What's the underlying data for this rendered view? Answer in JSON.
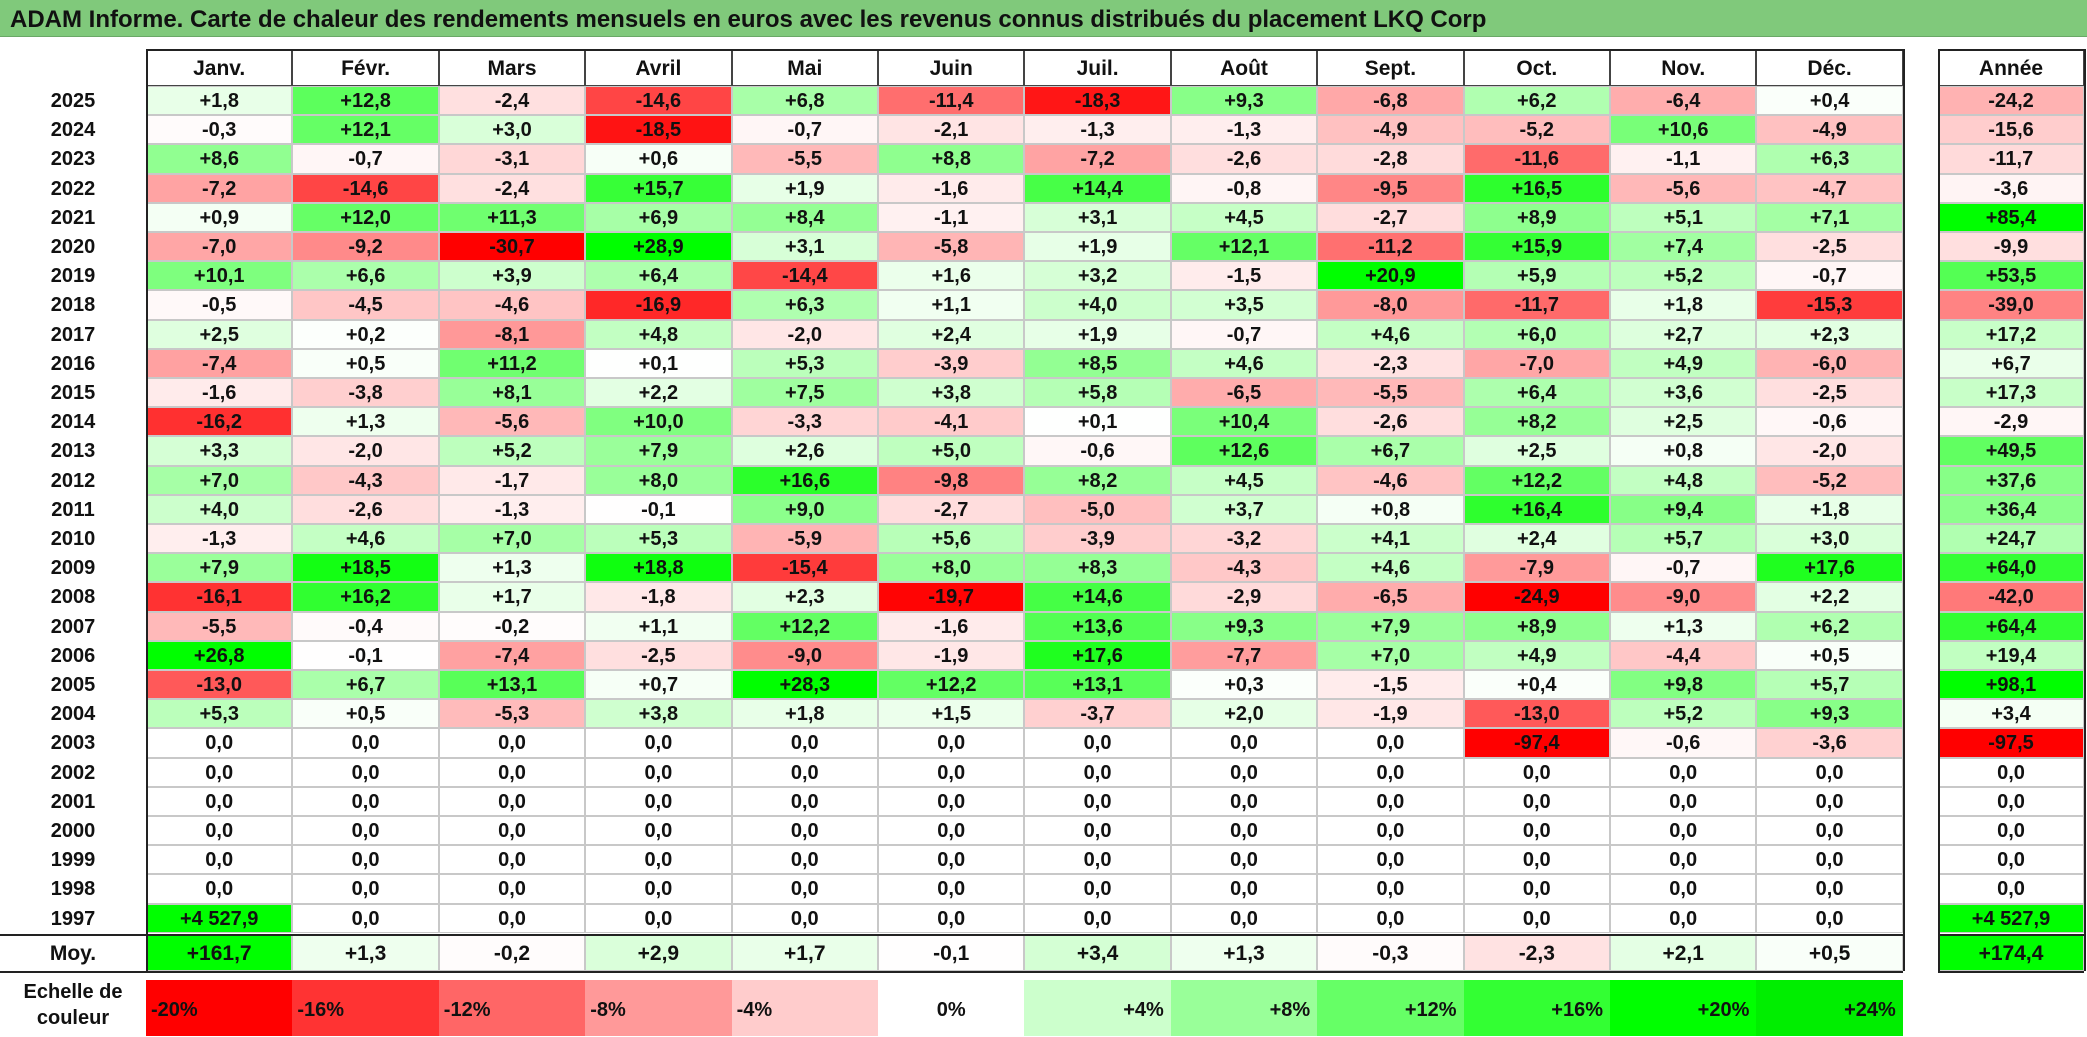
{
  "title": "ADAM Informe. Carte de chaleur des rendements mensuels en euros avec les revenus connus distribués du placement LKQ Corp",
  "chart_data": {
    "type": "heatmap",
    "title": "ADAM Informe. Carte de chaleur des rendements mensuels en euros avec les revenus connus distribués du placement LKQ Corp",
    "columns": [
      "Janv.",
      "Févr.",
      "Mars",
      "Avril",
      "Mai",
      "Juin",
      "Juil.",
      "Août",
      "Sept.",
      "Oct.",
      "Nov.",
      "Déc."
    ],
    "year_header": "Année",
    "rows": [
      {
        "year": "2025",
        "values": [
          "+1,8",
          "+12,8",
          "-2,4",
          "-14,6",
          "+6,8",
          "-11,4",
          "-18,3",
          "+9,3",
          "-6,8",
          "+6,2",
          "-6,4",
          "+0,4"
        ],
        "annual": "-24,2"
      },
      {
        "year": "2024",
        "values": [
          "-0,3",
          "+12,1",
          "+3,0",
          "-18,5",
          "-0,7",
          "-2,1",
          "-1,3",
          "-1,3",
          "-4,9",
          "-5,2",
          "+10,6",
          "-4,9"
        ],
        "annual": "-15,6"
      },
      {
        "year": "2023",
        "values": [
          "+8,6",
          "-0,7",
          "-3,1",
          "+0,6",
          "-5,5",
          "+8,8",
          "-7,2",
          "-2,6",
          "-2,8",
          "-11,6",
          "-1,1",
          "+6,3"
        ],
        "annual": "-11,7"
      },
      {
        "year": "2022",
        "values": [
          "-7,2",
          "-14,6",
          "-2,4",
          "+15,7",
          "+1,9",
          "-1,6",
          "+14,4",
          "-0,8",
          "-9,5",
          "+16,5",
          "-5,6",
          "-4,7"
        ],
        "annual": "-3,6"
      },
      {
        "year": "2021",
        "values": [
          "+0,9",
          "+12,0",
          "+11,3",
          "+6,9",
          "+8,4",
          "-1,1",
          "+3,1",
          "+4,5",
          "-2,7",
          "+8,9",
          "+5,1",
          "+7,1"
        ],
        "annual": "+85,4"
      },
      {
        "year": "2020",
        "values": [
          "-7,0",
          "-9,2",
          "-30,7",
          "+28,9",
          "+3,1",
          "-5,8",
          "+1,9",
          "+12,1",
          "-11,2",
          "+15,9",
          "+7,4",
          "-2,5"
        ],
        "annual": "-9,9"
      },
      {
        "year": "2019",
        "values": [
          "+10,1",
          "+6,6",
          "+3,9",
          "+6,4",
          "-14,4",
          "+1,6",
          "+3,2",
          "-1,5",
          "+20,9",
          "+5,9",
          "+5,2",
          "-0,7"
        ],
        "annual": "+53,5"
      },
      {
        "year": "2018",
        "values": [
          "-0,5",
          "-4,5",
          "-4,6",
          "-16,9",
          "+6,3",
          "+1,1",
          "+4,0",
          "+3,5",
          "-8,0",
          "-11,7",
          "+1,8",
          "-15,3"
        ],
        "annual": "-39,0"
      },
      {
        "year": "2017",
        "values": [
          "+2,5",
          "+0,2",
          "-8,1",
          "+4,8",
          "-2,0",
          "+2,4",
          "+1,9",
          "-0,7",
          "+4,6",
          "+6,0",
          "+2,7",
          "+2,3"
        ],
        "annual": "+17,2"
      },
      {
        "year": "2016",
        "values": [
          "-7,4",
          "+0,5",
          "+11,2",
          "+0,1",
          "+5,3",
          "-3,9",
          "+8,5",
          "+4,6",
          "-2,3",
          "-7,0",
          "+4,9",
          "-6,0"
        ],
        "annual": "+6,7"
      },
      {
        "year": "2015",
        "values": [
          "-1,6",
          "-3,8",
          "+8,1",
          "+2,2",
          "+7,5",
          "+3,8",
          "+5,8",
          "-6,5",
          "-5,5",
          "+6,4",
          "+3,6",
          "-2,5"
        ],
        "annual": "+17,3"
      },
      {
        "year": "2014",
        "values": [
          "-16,2",
          "+1,3",
          "-5,6",
          "+10,0",
          "-3,3",
          "-4,1",
          "+0,1",
          "+10,4",
          "-2,6",
          "+8,2",
          "+2,5",
          "-0,6"
        ],
        "annual": "-2,9"
      },
      {
        "year": "2013",
        "values": [
          "+3,3",
          "-2,0",
          "+5,2",
          "+7,9",
          "+2,6",
          "+5,0",
          "-0,6",
          "+12,6",
          "+6,7",
          "+2,5",
          "+0,8",
          "-2,0"
        ],
        "annual": "+49,5"
      },
      {
        "year": "2012",
        "values": [
          "+7,0",
          "-4,3",
          "-1,7",
          "+8,0",
          "+16,6",
          "-9,8",
          "+8,2",
          "+4,5",
          "-4,6",
          "+12,2",
          "+4,8",
          "-5,2"
        ],
        "annual": "+37,6"
      },
      {
        "year": "2011",
        "values": [
          "+4,0",
          "-2,6",
          "-1,3",
          "-0,1",
          "+9,0",
          "-2,7",
          "-5,0",
          "+3,7",
          "+0,8",
          "+16,4",
          "+9,4",
          "+1,8"
        ],
        "annual": "+36,4"
      },
      {
        "year": "2010",
        "values": [
          "-1,3",
          "+4,6",
          "+7,0",
          "+5,3",
          "-5,9",
          "+5,6",
          "-3,9",
          "-3,2",
          "+4,1",
          "+2,4",
          "+5,7",
          "+3,0"
        ],
        "annual": "+24,7"
      },
      {
        "year": "2009",
        "values": [
          "+7,9",
          "+18,5",
          "+1,3",
          "+18,8",
          "-15,4",
          "+8,0",
          "+8,3",
          "-4,3",
          "+4,6",
          "-7,9",
          "-0,7",
          "+17,6"
        ],
        "annual": "+64,0"
      },
      {
        "year": "2008",
        "values": [
          "-16,1",
          "+16,2",
          "+1,7",
          "-1,8",
          "+2,3",
          "-19,7",
          "+14,6",
          "-2,9",
          "-6,5",
          "-24,9",
          "-9,0",
          "+2,2"
        ],
        "annual": "-42,0"
      },
      {
        "year": "2007",
        "values": [
          "-5,5",
          "-0,4",
          "-0,2",
          "+1,1",
          "+12,2",
          "-1,6",
          "+13,6",
          "+9,3",
          "+7,9",
          "+8,9",
          "+1,3",
          "+6,2"
        ],
        "annual": "+64,4"
      },
      {
        "year": "2006",
        "values": [
          "+26,8",
          "-0,1",
          "-7,4",
          "-2,5",
          "-9,0",
          "-1,9",
          "+17,6",
          "-7,7",
          "+7,0",
          "+4,9",
          "-4,4",
          "+0,5"
        ],
        "annual": "+19,4"
      },
      {
        "year": "2005",
        "values": [
          "-13,0",
          "+6,7",
          "+13,1",
          "+0,7",
          "+28,3",
          "+12,2",
          "+13,1",
          "+0,3",
          "-1,5",
          "+0,4",
          "+9,8",
          "+5,7"
        ],
        "annual": "+98,1"
      },
      {
        "year": "2004",
        "values": [
          "+5,3",
          "+0,5",
          "-5,3",
          "+3,8",
          "+1,8",
          "+1,5",
          "-3,7",
          "+2,0",
          "-1,9",
          "-13,0",
          "+5,2",
          "+9,3"
        ],
        "annual": "+3,4"
      },
      {
        "year": "2003",
        "values": [
          "0,0",
          "0,0",
          "0,0",
          "0,0",
          "0,0",
          "0,0",
          "0,0",
          "0,0",
          "0,0",
          "-97,4",
          "-0,6",
          "-3,6"
        ],
        "annual": "-97,5"
      },
      {
        "year": "2002",
        "values": [
          "0,0",
          "0,0",
          "0,0",
          "0,0",
          "0,0",
          "0,0",
          "0,0",
          "0,0",
          "0,0",
          "0,0",
          "0,0",
          "0,0"
        ],
        "annual": "0,0"
      },
      {
        "year": "2001",
        "values": [
          "0,0",
          "0,0",
          "0,0",
          "0,0",
          "0,0",
          "0,0",
          "0,0",
          "0,0",
          "0,0",
          "0,0",
          "0,0",
          "0,0"
        ],
        "annual": "0,0"
      },
      {
        "year": "2000",
        "values": [
          "0,0",
          "0,0",
          "0,0",
          "0,0",
          "0,0",
          "0,0",
          "0,0",
          "0,0",
          "0,0",
          "0,0",
          "0,0",
          "0,0"
        ],
        "annual": "0,0"
      },
      {
        "year": "1999",
        "values": [
          "0,0",
          "0,0",
          "0,0",
          "0,0",
          "0,0",
          "0,0",
          "0,0",
          "0,0",
          "0,0",
          "0,0",
          "0,0",
          "0,0"
        ],
        "annual": "0,0"
      },
      {
        "year": "1998",
        "values": [
          "0,0",
          "0,0",
          "0,0",
          "0,0",
          "0,0",
          "0,0",
          "0,0",
          "0,0",
          "0,0",
          "0,0",
          "0,0",
          "0,0"
        ],
        "annual": "0,0"
      },
      {
        "year": "1997",
        "values": [
          "+4 527,9",
          "0,0",
          "0,0",
          "0,0",
          "0,0",
          "0,0",
          "0,0",
          "0,0",
          "0,0",
          "0,0",
          "0,0",
          "0,0"
        ],
        "annual": "+4 527,9"
      }
    ],
    "average": {
      "label": "Moy.",
      "values": [
        "+161,7",
        "+1,3",
        "-0,2",
        "+2,9",
        "+1,7",
        "-0,1",
        "+3,4",
        "+1,3",
        "-0,3",
        "-2,3",
        "+2,1",
        "+0,5"
      ],
      "annual": "+174,4"
    },
    "color_scale": {
      "label": "Echelle de couleur",
      "steps": [
        {
          "label": "-20%",
          "color": "#ff0000"
        },
        {
          "label": "-16%",
          "color": "#ff3333"
        },
        {
          "label": "-12%",
          "color": "#ff6666"
        },
        {
          "label": "-8%",
          "color": "#ff9999"
        },
        {
          "label": "-4%",
          "color": "#ffcccc"
        },
        {
          "label": "0%",
          "color": "#ffffff"
        },
        {
          "label": "+4%",
          "color": "#ccffcc"
        },
        {
          "label": "+8%",
          "color": "#99ff99"
        },
        {
          "label": "+12%",
          "color": "#66ff66"
        },
        {
          "label": "+16%",
          "color": "#33ff33"
        },
        {
          "label": "+20%",
          "color": "#00ff00"
        },
        {
          "label": "+24%",
          "color": "#00ee00"
        }
      ]
    }
  }
}
